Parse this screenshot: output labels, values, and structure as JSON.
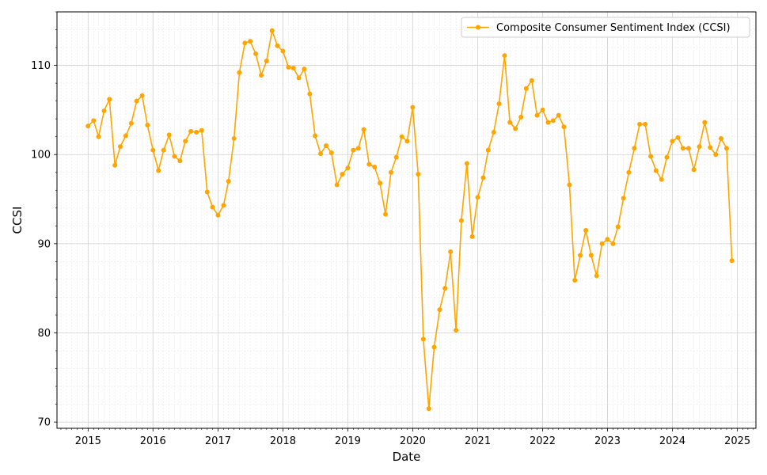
{
  "chart_data": {
    "type": "line",
    "title": "",
    "xlabel": "Date",
    "ylabel": "CCSI",
    "xlim": [
      "2014-07-10",
      "2025-04-15"
    ],
    "ylim": [
      69.3,
      116.0
    ],
    "x_ticks": [
      "2015",
      "2016",
      "2017",
      "2018",
      "2019",
      "2020",
      "2021",
      "2022",
      "2023",
      "2024",
      "2025"
    ],
    "y_ticks": [
      70,
      80,
      90,
      100,
      110
    ],
    "grid": true,
    "minor_grid": true,
    "legend_position": "top-right",
    "color": "#FFA500",
    "series": [
      {
        "name": "Composite Consumer Sentiment Index (CCSI)",
        "x": [
          "2015-01",
          "2015-02",
          "2015-03",
          "2015-04",
          "2015-05",
          "2015-06",
          "2015-07",
          "2015-08",
          "2015-09",
          "2015-10",
          "2015-11",
          "2015-12",
          "2016-01",
          "2016-02",
          "2016-03",
          "2016-04",
          "2016-05",
          "2016-06",
          "2016-07",
          "2016-08",
          "2016-09",
          "2016-10",
          "2016-11",
          "2016-12",
          "2017-01",
          "2017-02",
          "2017-03",
          "2017-04",
          "2017-05",
          "2017-06",
          "2017-07",
          "2017-08",
          "2017-09",
          "2017-10",
          "2017-11",
          "2017-12",
          "2018-01",
          "2018-02",
          "2018-03",
          "2018-04",
          "2018-05",
          "2018-06",
          "2018-07",
          "2018-08",
          "2018-09",
          "2018-10",
          "2018-11",
          "2018-12",
          "2019-01",
          "2019-02",
          "2019-03",
          "2019-04",
          "2019-05",
          "2019-06",
          "2019-07",
          "2019-08",
          "2019-09",
          "2019-10",
          "2019-11",
          "2019-12",
          "2020-01",
          "2020-02",
          "2020-03",
          "2020-04",
          "2020-05",
          "2020-06",
          "2020-07",
          "2020-08",
          "2020-09",
          "2020-10",
          "2020-11",
          "2020-12",
          "2021-01",
          "2021-02",
          "2021-03",
          "2021-04",
          "2021-05",
          "2021-06",
          "2021-07",
          "2021-08",
          "2021-09",
          "2021-10",
          "2021-11",
          "2021-12",
          "2022-01",
          "2022-02",
          "2022-03",
          "2022-04",
          "2022-05",
          "2022-06",
          "2022-07",
          "2022-08",
          "2022-09",
          "2022-10",
          "2022-11",
          "2022-12",
          "2023-01",
          "2023-02",
          "2023-03",
          "2023-04",
          "2023-05",
          "2023-06",
          "2023-07",
          "2023-08",
          "2023-09",
          "2023-10",
          "2023-11",
          "2023-12",
          "2024-01",
          "2024-02",
          "2024-03",
          "2024-04",
          "2024-05",
          "2024-06",
          "2024-07",
          "2024-08",
          "2024-09",
          "2024-10",
          "2024-11",
          "2024-12"
        ],
        "values": [
          103.2,
          103.8,
          102.0,
          104.9,
          106.2,
          98.8,
          100.9,
          102.1,
          103.5,
          106.0,
          106.6,
          103.3,
          100.5,
          98.2,
          100.5,
          102.2,
          99.8,
          99.3,
          101.5,
          102.6,
          102.5,
          102.7,
          95.8,
          94.1,
          93.2,
          94.3,
          97.0,
          101.8,
          109.2,
          112.5,
          112.7,
          111.3,
          108.9,
          110.5,
          113.9,
          112.2,
          111.6,
          109.8,
          109.7,
          108.6,
          109.6,
          106.8,
          102.1,
          100.1,
          101.0,
          100.2,
          96.6,
          97.8,
          98.5,
          100.5,
          100.7,
          102.8,
          98.9,
          98.6,
          96.8,
          93.3,
          98.0,
          99.7,
          102.0,
          101.5,
          105.3,
          97.8,
          79.3,
          71.5,
          78.4,
          82.6,
          85.0,
          89.1,
          80.3,
          92.6,
          99.0,
          90.8,
          95.2,
          97.4,
          100.5,
          102.5,
          105.7,
          111.1,
          103.6,
          102.9,
          104.2,
          107.4,
          108.3,
          104.4,
          105.0,
          103.6,
          103.8,
          104.4,
          103.1,
          96.6,
          85.9,
          88.7,
          91.5,
          88.7,
          86.4,
          90.0,
          90.5,
          90.0,
          91.9,
          95.1,
          98.0,
          100.7,
          103.4,
          103.4,
          99.8,
          98.2,
          97.2,
          99.7,
          101.5,
          101.9,
          100.7,
          100.7,
          98.3,
          100.9,
          103.6,
          100.8,
          100.0,
          101.8,
          100.7,
          88.1
        ]
      }
    ]
  }
}
